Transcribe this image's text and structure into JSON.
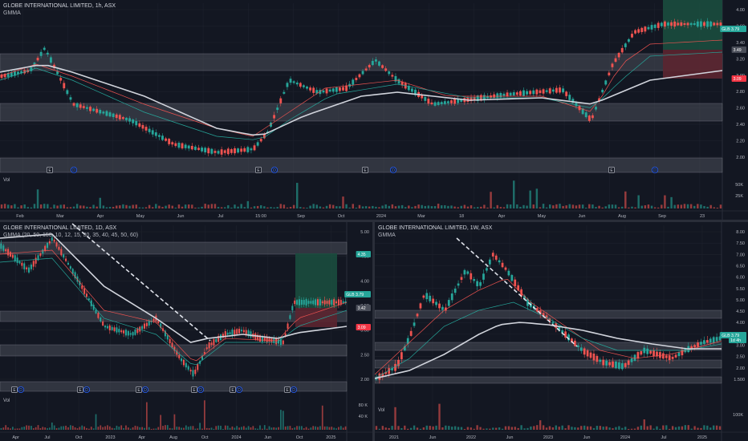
{
  "colors": {
    "bg": "#131722",
    "grid": "#1e222d",
    "zone": "#4a4e59",
    "up": "#26a69a",
    "down": "#ef5350",
    "ma": "#d1d4dc",
    "green_fill": "#1b4d3e",
    "red_fill": "#5c2530",
    "text": "#b2b5be",
    "ticker_bg": "#26a69a",
    "neg_bg": "#f23645"
  },
  "panels": [
    {
      "id": "top",
      "title": "GLOBE INTERNATIONAL LIMITED, 1h, ASX",
      "subtitle": "GMMA",
      "price_ticks": [
        "4.00",
        "3.60",
        "3.40",
        "3.20",
        "3.00",
        "2.80",
        "2.60",
        "2.40",
        "2.20",
        "2.00"
      ],
      "time_ticks": [
        "Feb",
        "Mar",
        "Apr",
        "May",
        "Jun",
        "Jul",
        "15:00",
        "Sep",
        "Oct",
        "2024",
        "Mar",
        "18",
        "Apr",
        "May",
        "Jun",
        "Aug",
        "Sep",
        "23"
      ],
      "volume_label": "Vol",
      "volume_ticks": [
        "50K",
        "25K"
      ],
      "badges": [
        {
          "text": "GLB 3.79",
          "kind": "ticker"
        },
        {
          "text": "3.49",
          "kind": "level"
        },
        {
          "text": "3.09",
          "kind": "stop"
        }
      ],
      "events": [
        "E",
        "D",
        "E",
        "D",
        "E",
        "D",
        "E",
        "D"
      ]
    },
    {
      "id": "bottom-left",
      "title": "GLOBE INTERNATIONAL LIMITED, 1D, ASX",
      "subtitle": "GMMA (20, 50, 150, 10, 12, 15, 30, 35, 40, 45, 50, 60)",
      "price_ticks": [
        "5.00",
        "4.50",
        "4.00",
        "3.50",
        "3.00",
        "2.50",
        "2.00"
      ],
      "time_ticks": [
        "Apr",
        "Jul",
        "Oct",
        "2023",
        "Apr",
        "Aug",
        "Oct",
        "2024",
        "Jun",
        "Oct",
        "2025"
      ],
      "volume_label": "Vol",
      "volume_ticks": [
        "80 K",
        "40 K"
      ],
      "badges": [
        {
          "text": "4.35",
          "kind": "target"
        },
        {
          "text": "GLB 3.79",
          "kind": "ticker"
        },
        {
          "text": "3.42",
          "kind": "level"
        },
        {
          "text": "3.09",
          "kind": "stop"
        }
      ],
      "events": [
        "E",
        "D",
        "E",
        "D",
        "E",
        "D",
        "E",
        "D",
        "E",
        "D",
        "E",
        "D"
      ]
    },
    {
      "id": "bottom-right",
      "title": "GLOBE INTERNATIONAL LIMITED, 1W, ASX",
      "subtitle": "GMMA",
      "price_ticks": [
        "8.00",
        "7.50",
        "7.00",
        "6.50",
        "6.00",
        "5.50",
        "5.00",
        "4.50",
        "4.00",
        "3.50",
        "3.00",
        "2.50",
        "2.00",
        "1.500"
      ],
      "time_ticks": [
        "2021",
        "Jun",
        "2022",
        "Jun",
        "2023",
        "Jun",
        "2024",
        "Jul",
        "2025"
      ],
      "volume_label": "Vol",
      "volume_ticks": [
        "100K"
      ],
      "badges": [
        {
          "text": "GLB 3.79",
          "kind": "ticker"
        },
        {
          "text": "1d 4h",
          "kind": "ticker"
        }
      ],
      "events": []
    }
  ]
}
